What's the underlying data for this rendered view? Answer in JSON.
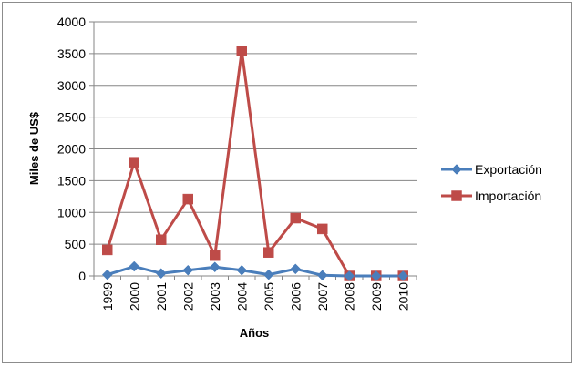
{
  "chart_data": {
    "type": "line",
    "title": "",
    "xlabel": "Años",
    "ylabel": "Miles de US$",
    "ylim": [
      0,
      4000
    ],
    "yticks": [
      0,
      500,
      1000,
      1500,
      2000,
      2500,
      3000,
      3500,
      4000
    ],
    "categories": [
      "1999",
      "2000",
      "2001",
      "2002",
      "2003",
      "2004",
      "2005",
      "2006",
      "2007",
      "2008",
      "2009",
      "2010"
    ],
    "grid": "horizontal",
    "legend_position": "right",
    "series": [
      {
        "name": "Exportación",
        "color": "#4a7ebb",
        "marker": "diamond",
        "values": [
          20,
          150,
          40,
          90,
          140,
          90,
          20,
          110,
          10,
          0,
          0,
          0
        ]
      },
      {
        "name": "Importación",
        "color": "#be4b48",
        "marker": "square",
        "values": [
          410,
          1790,
          570,
          1210,
          320,
          3540,
          370,
          910,
          740,
          0,
          0,
          0
        ]
      }
    ]
  }
}
